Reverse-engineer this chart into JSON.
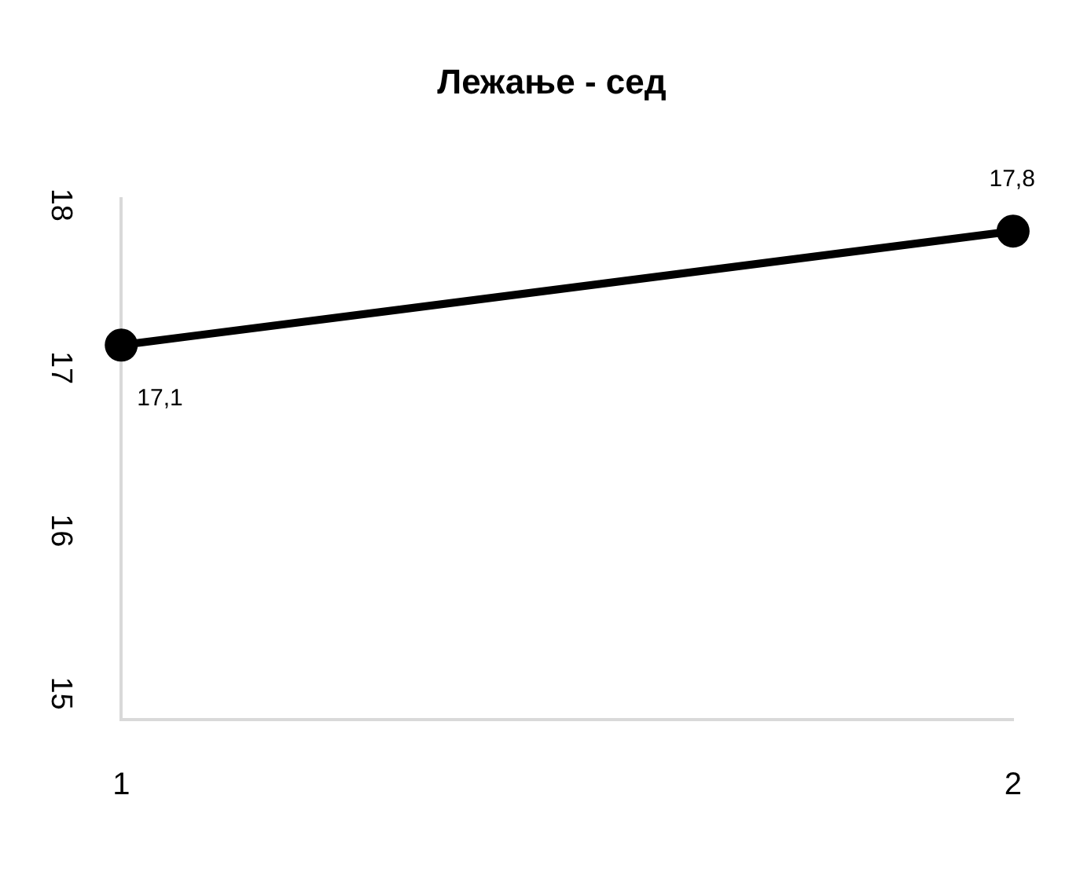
{
  "chart_data": {
    "type": "line",
    "title": "Лежање - сед",
    "categories": [
      "1",
      "2"
    ],
    "series": [
      {
        "color": "#000000",
        "values": [
          17.1,
          17.8
        ],
        "value_labels": [
          "17,1",
          "17,8"
        ]
      }
    ],
    "ylim": [
      14.8,
      18
    ],
    "yticks": [
      15,
      16,
      17,
      18
    ],
    "grid": false,
    "legend": false,
    "marker": "circle",
    "line_style": "solid"
  }
}
